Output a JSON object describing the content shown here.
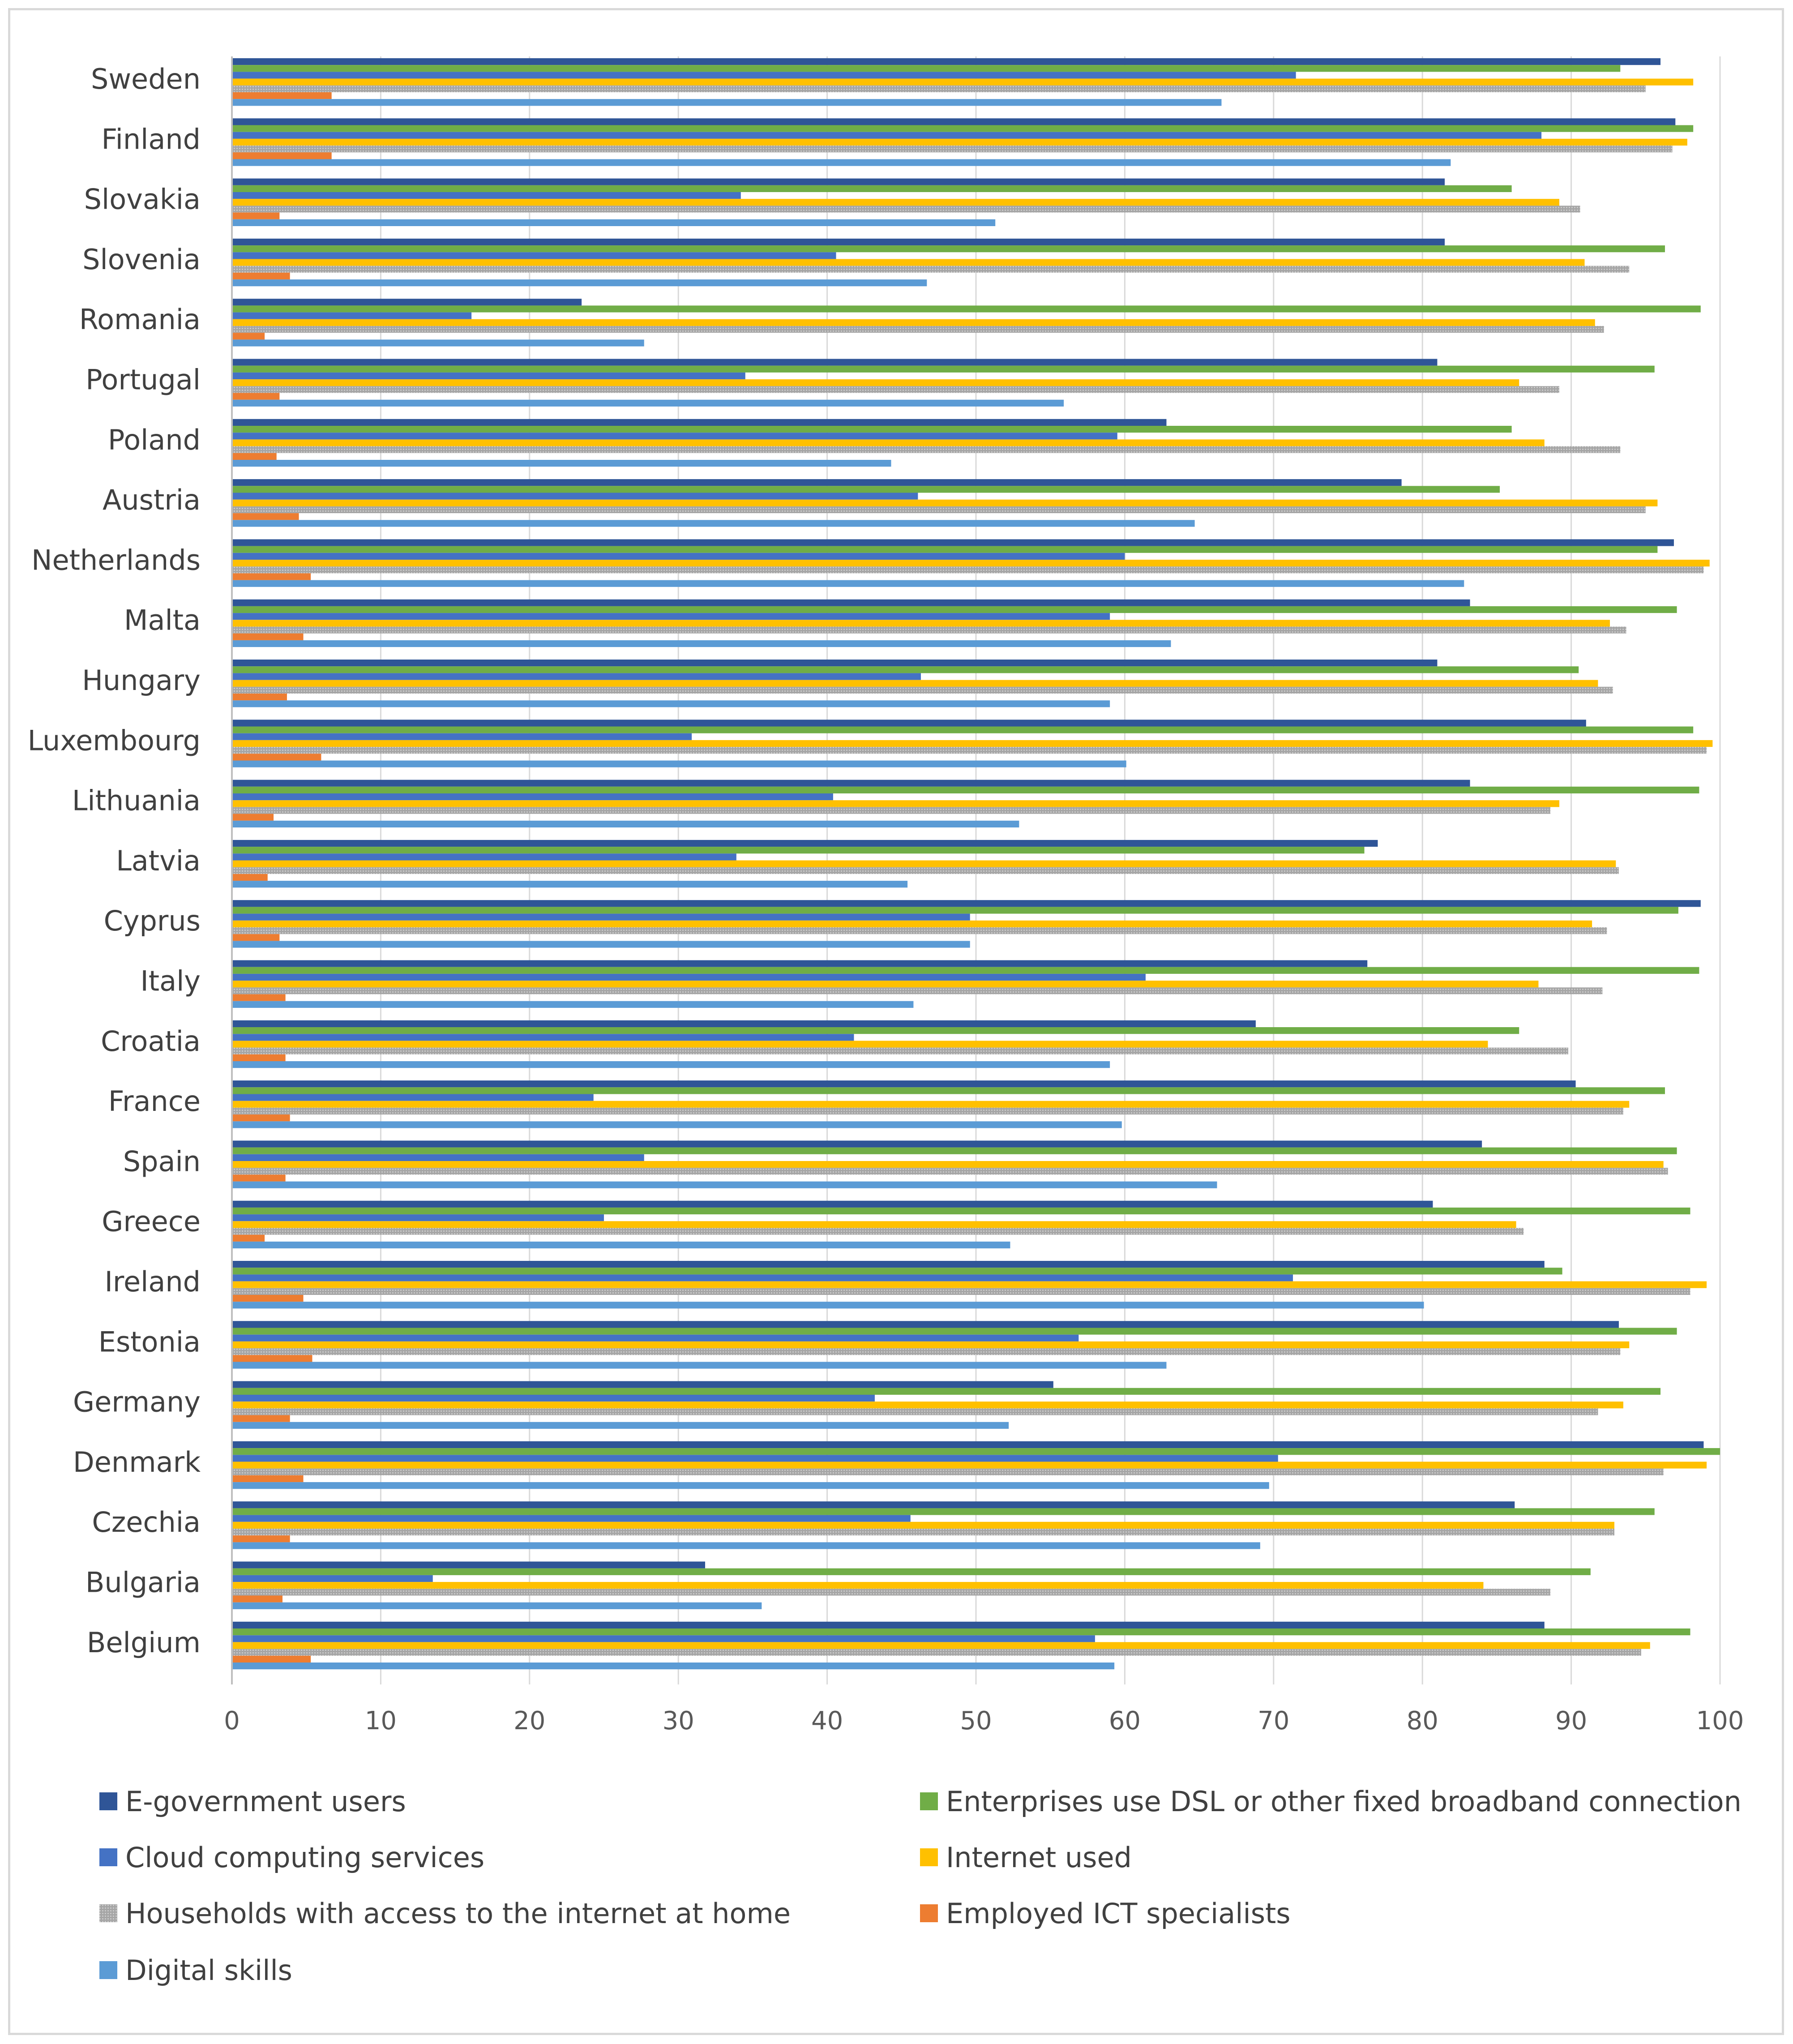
{
  "chart_data": {
    "type": "bar",
    "orientation": "horizontal",
    "title": "",
    "xlabel": "",
    "ylabel": "",
    "xlim": [
      0,
      100
    ],
    "ticks": [
      "0",
      "10",
      "20",
      "30",
      "40",
      "50",
      "60",
      "70",
      "80",
      "90",
      "100"
    ],
    "grid": true,
    "legend_position": "bottom",
    "categories": [
      "Sweden",
      "Finland",
      "Slovakia",
      "Slovenia",
      "Romania",
      "Portugal",
      "Poland",
      "Austria",
      "Netherlands",
      "Malta",
      "Hungary",
      "Luxembourg",
      "Lithuania",
      "Latvia",
      "Cyprus",
      "Italy",
      "Croatia",
      "France",
      "Spain",
      "Greece",
      "Ireland",
      "Estonia",
      "Germany",
      "Denmark",
      "Czechia",
      "Bulgaria",
      "Belgium"
    ],
    "series": [
      {
        "name": "E-government users",
        "color": "#2f5597",
        "values": [
          96,
          97,
          81.5,
          81.5,
          23.5,
          81,
          62.8,
          78.6,
          96.9,
          83.2,
          81,
          91,
          83.2,
          77,
          98.7,
          76.3,
          68.8,
          90.3,
          84,
          80.7,
          88.2,
          93.2,
          55.2,
          98.9,
          86.2,
          31.8,
          88.2
        ]
      },
      {
        "name": "Enterprises use DSL or other fixed broadband connection",
        "color": "#70ad47",
        "values": [
          93.3,
          98.2,
          86,
          96.3,
          98.7,
          95.6,
          86,
          85.2,
          95.8,
          97.1,
          90.5,
          98.2,
          98.6,
          76.1,
          97.2,
          98.6,
          86.5,
          96.3,
          97.1,
          98,
          89.4,
          97.1,
          96,
          100,
          95.6,
          91.3,
          98
        ]
      },
      {
        "name": "Cloud computing services",
        "color": "#4472c4",
        "values": [
          71.5,
          88,
          34.2,
          40.6,
          16.1,
          34.5,
          59.5,
          46.1,
          60,
          59,
          46.3,
          30.9,
          40.4,
          33.9,
          49.6,
          61.4,
          41.8,
          24.3,
          27.7,
          25,
          71.3,
          56.9,
          43.2,
          70.3,
          45.6,
          13.5,
          58
        ]
      },
      {
        "name": "Internet used",
        "color": "#ffc000",
        "values": [
          98.2,
          97.8,
          89.2,
          90.9,
          91.6,
          86.5,
          88.2,
          95.8,
          99.3,
          92.6,
          91.8,
          99.5,
          89.2,
          93,
          91.4,
          87.8,
          84.4,
          93.9,
          96.2,
          86.3,
          99.1,
          93.9,
          93.5,
          99.1,
          92.9,
          84.1,
          95.3
        ]
      },
      {
        "name": "Households with access to the internet at home",
        "color": "#a5a5a5",
        "values": [
          95,
          96.8,
          90.6,
          93.9,
          92.2,
          89.2,
          93.3,
          95,
          98.9,
          93.7,
          92.8,
          99.1,
          88.6,
          93.2,
          92.4,
          92.1,
          89.8,
          93.5,
          96.5,
          86.8,
          98,
          93.3,
          91.8,
          96.2,
          92.9,
          88.6,
          94.7
        ]
      },
      {
        "name": "Employed ICT specialists",
        "color": "#ed7d31",
        "values": [
          6.7,
          6.7,
          3.2,
          3.9,
          2.2,
          3.2,
          3,
          4.5,
          5.3,
          4.8,
          3.7,
          6,
          2.8,
          2.4,
          3.2,
          3.6,
          3.6,
          3.9,
          3.6,
          2.2,
          4.8,
          5.4,
          3.9,
          4.8,
          3.9,
          3.4,
          5.3
        ]
      },
      {
        "name": "Digital skills",
        "color": "#5b9bd5",
        "values": [
          66.5,
          81.9,
          51.3,
          46.7,
          27.7,
          55.9,
          44.3,
          64.7,
          82.8,
          63.1,
          59,
          60.1,
          52.9,
          45.4,
          49.6,
          45.8,
          59,
          59.8,
          66.2,
          52.3,
          80.1,
          62.8,
          52.2,
          69.7,
          69.1,
          35.6,
          59.3
        ]
      }
    ]
  },
  "legend": {
    "items": [
      {
        "label": "E-government users",
        "color": "#2f5597"
      },
      {
        "label": "Enterprises use DSL or other fixed broadband connection",
        "color": "#70ad47"
      },
      {
        "label": "Cloud computing services",
        "color": "#4472c4"
      },
      {
        "label": "Internet used",
        "color": "#ffc000"
      },
      {
        "label": "Households with access to the internet at home",
        "color": "#a5a5a5"
      },
      {
        "label": "Employed ICT specialists",
        "color": "#ed7d31"
      },
      {
        "label": "Digital skills",
        "color": "#5b9bd5"
      }
    ]
  }
}
